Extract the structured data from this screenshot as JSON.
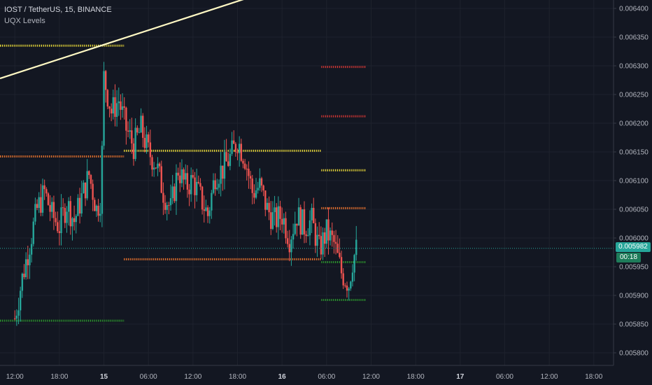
{
  "header": {
    "title": "IOST / TetherUS, 15, BINANCE",
    "indicator": "UQX Levels"
  },
  "price_tag": "0.005982",
  "countdown": "00:18",
  "colors": {
    "background": "#131722",
    "up": "#26a69a",
    "down": "#ef5350",
    "level_yellow": "#ffeb3b",
    "level_orange": "#ff7b2e",
    "level_red": "#e53935",
    "level_green": "#2e9e2e",
    "trendline": "#fff9c4",
    "current_line": "#26a69a"
  },
  "chart_data": {
    "type": "candlestick",
    "y_axis": {
      "min": 0.00577,
      "max": 0.00642,
      "ticks": [
        "0.006400",
        "0.006350",
        "0.006300",
        "0.006250",
        "0.006200",
        "0.006150",
        "0.006100",
        "0.006050",
        "0.006000",
        "0.005950",
        "0.005900",
        "0.005850",
        "0.005800"
      ],
      "tick_values": [
        0.0064,
        0.00635,
        0.0063,
        0.00625,
        0.0062,
        0.00615,
        0.0061,
        0.00605,
        0.006,
        0.00595,
        0.0059,
        0.00585,
        0.0058
      ]
    },
    "x_axis": {
      "ticks": [
        "12:00",
        "18:00",
        "15",
        "06:00",
        "12:00",
        "18:00",
        "16",
        "06:00",
        "12:00",
        "18:00",
        "17",
        "06:00",
        "12:00",
        "18:00"
      ],
      "tick_hours": [
        12,
        18,
        24,
        30,
        36,
        42,
        48,
        54,
        60,
        66,
        72,
        78,
        84,
        90
      ]
    },
    "current_price": 0.005982,
    "candles_close_path": [
      [
        12,
        0.00586
      ],
      [
        13,
        0.00593
      ],
      [
        14,
        0.00599
      ],
      [
        15,
        0.00605
      ],
      [
        16,
        0.00608
      ],
      [
        17,
        0.00604
      ],
      [
        18,
        0.00602
      ],
      [
        19,
        0.00606
      ],
      [
        20,
        0.00603
      ],
      [
        21,
        0.00607
      ],
      [
        22,
        0.00611
      ],
      [
        23,
        0.00605
      ],
      [
        23.6,
        0.00607
      ],
      [
        24,
        0.00628
      ],
      [
        25,
        0.00622
      ],
      [
        26,
        0.00624
      ],
      [
        27,
        0.00619
      ],
      [
        28,
        0.00616
      ],
      [
        29,
        0.00619
      ],
      [
        30,
        0.00615
      ],
      [
        31,
        0.00613
      ],
      [
        32,
        0.00608
      ],
      [
        33,
        0.00605
      ],
      [
        34,
        0.00612
      ],
      [
        35,
        0.00609
      ],
      [
        36,
        0.0061
      ],
      [
        37,
        0.00607
      ],
      [
        38,
        0.00604
      ],
      [
        39,
        0.00611
      ],
      [
        40,
        0.00612
      ],
      [
        41,
        0.00614
      ],
      [
        42,
        0.00617
      ],
      [
        43,
        0.00614
      ],
      [
        44,
        0.00608
      ],
      [
        45,
        0.00609
      ],
      [
        46,
        0.00605
      ],
      [
        47,
        0.00603
      ],
      [
        48,
        0.00604
      ],
      [
        49,
        0.006
      ],
      [
        50,
        0.00604
      ],
      [
        51,
        0.00602
      ],
      [
        52,
        0.00603
      ],
      [
        53,
        0.00598
      ],
      [
        54,
        0.00601
      ],
      [
        55,
        0.00599
      ],
      [
        56,
        0.00594
      ],
      [
        57,
        0.00592
      ],
      [
        57.5,
        0.00596
      ],
      [
        58,
        0.00598
      ]
    ],
    "levels": [
      {
        "color": "yellow",
        "value": 0.006335,
        "from_hour": 10.0,
        "to_hour": 26.7
      },
      {
        "color": "orange",
        "value": 0.006142,
        "from_hour": 10.0,
        "to_hour": 26.7
      },
      {
        "color": "green",
        "value": 0.005856,
        "from_hour": 10.0,
        "to_hour": 26.7
      },
      {
        "color": "yellow",
        "value": 0.006152,
        "from_hour": 26.7,
        "to_hour": 53.3
      },
      {
        "color": "orange",
        "value": 0.005963,
        "from_hour": 26.7,
        "to_hour": 53.3
      },
      {
        "color": "red",
        "value": 0.006298,
        "from_hour": 53.3,
        "to_hour": 59.3
      },
      {
        "color": "red",
        "value": 0.006212,
        "from_hour": 53.3,
        "to_hour": 59.3
      },
      {
        "color": "yellow",
        "value": 0.006118,
        "from_hour": 53.3,
        "to_hour": 59.3
      },
      {
        "color": "orange",
        "value": 0.006052,
        "from_hour": 53.3,
        "to_hour": 59.3
      },
      {
        "color": "green",
        "value": 0.005958,
        "from_hour": 53.3,
        "to_hour": 59.3
      },
      {
        "color": "green",
        "value": 0.005892,
        "from_hour": 53.3,
        "to_hour": 59.3
      }
    ],
    "trendline": {
      "from": [
        10.0,
        0.006278
      ],
      "to": [
        43.8,
        0.00642
      ]
    }
  }
}
